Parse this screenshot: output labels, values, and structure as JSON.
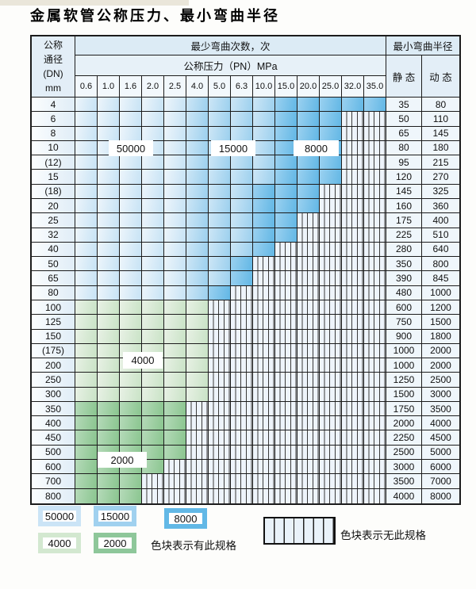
{
  "title": "金属软管公称压力、最小弯曲半径",
  "table": {
    "header": {
      "dn_lines": [
        "公称",
        "通径",
        "(DN)",
        "mm"
      ],
      "bend_cycles_label": "最少弯曲次数，次",
      "bend_radius_label": "最小弯曲半径",
      "pressure_label": "公称压力（PN）MPa",
      "pressure_cols": [
        "0.6",
        "1.0",
        "1.6",
        "2.0",
        "2.5",
        "4.0",
        "5.0",
        "6.3",
        "10.0",
        "15.0",
        "20.0",
        "25.0",
        "32.0",
        "35.0"
      ],
      "static_label": "静 态",
      "dynamic_label": "动 态"
    },
    "zone_legend_meaning": {
      "z50000": "50000",
      "z15000": "15000",
      "z8000": "8000",
      "z4000": "4000",
      "z2000": "2000",
      "striped": "无此规格"
    },
    "rows": [
      {
        "dn": "4",
        "static": "35",
        "dynamic": "80",
        "zones": [
          [
            "z50000",
            5
          ],
          [
            "z15000",
            4
          ],
          [
            "z8000",
            5
          ]
        ]
      },
      {
        "dn": "6",
        "static": "50",
        "dynamic": "110",
        "zones": [
          [
            "z50000",
            5
          ],
          [
            "z15000",
            4
          ],
          [
            "z8000",
            3
          ],
          [
            "striped",
            2
          ]
        ]
      },
      {
        "dn": "8",
        "static": "65",
        "dynamic": "145",
        "zones": [
          [
            "z50000",
            5
          ],
          [
            "z15000",
            4
          ],
          [
            "z8000",
            3
          ],
          [
            "striped",
            2
          ]
        ]
      },
      {
        "dn": "10",
        "static": "80",
        "dynamic": "180",
        "zones": [
          [
            "z50000",
            5
          ],
          [
            "z15000",
            4
          ],
          [
            "z8000",
            3
          ],
          [
            "striped",
            2
          ]
        ]
      },
      {
        "dn": "(12)",
        "static": "95",
        "dynamic": "215",
        "zones": [
          [
            "z50000",
            5
          ],
          [
            "z15000",
            4
          ],
          [
            "z8000",
            3
          ],
          [
            "striped",
            2
          ]
        ]
      },
      {
        "dn": "15",
        "static": "120",
        "dynamic": "270",
        "zones": [
          [
            "z50000",
            5
          ],
          [
            "z15000",
            4
          ],
          [
            "z8000",
            3
          ],
          [
            "striped",
            2
          ]
        ]
      },
      {
        "dn": "(18)",
        "static": "145",
        "dynamic": "325",
        "zones": [
          [
            "z50000",
            5
          ],
          [
            "z15000",
            3
          ],
          [
            "z8000",
            3
          ],
          [
            "striped",
            3
          ]
        ]
      },
      {
        "dn": "20",
        "static": "160",
        "dynamic": "360",
        "zones": [
          [
            "z50000",
            5
          ],
          [
            "z15000",
            3
          ],
          [
            "z8000",
            3
          ],
          [
            "striped",
            3
          ]
        ]
      },
      {
        "dn": "25",
        "static": "175",
        "dynamic": "400",
        "zones": [
          [
            "z50000",
            5
          ],
          [
            "z15000",
            3
          ],
          [
            "z8000",
            2
          ],
          [
            "striped",
            4
          ]
        ]
      },
      {
        "dn": "32",
        "static": "225",
        "dynamic": "510",
        "zones": [
          [
            "z50000",
            5
          ],
          [
            "z15000",
            3
          ],
          [
            "z8000",
            2
          ],
          [
            "striped",
            4
          ]
        ]
      },
      {
        "dn": "40",
        "static": "280",
        "dynamic": "640",
        "zones": [
          [
            "z50000",
            5
          ],
          [
            "z15000",
            3
          ],
          [
            "z8000",
            1
          ],
          [
            "striped",
            5
          ]
        ]
      },
      {
        "dn": "50",
        "static": "350",
        "dynamic": "800",
        "zones": [
          [
            "z50000",
            5
          ],
          [
            "z15000",
            2
          ],
          [
            "z8000",
            1
          ],
          [
            "striped",
            6
          ]
        ]
      },
      {
        "dn": "65",
        "static": "390",
        "dynamic": "845",
        "zones": [
          [
            "z50000",
            5
          ],
          [
            "z15000",
            2
          ],
          [
            "z8000",
            1
          ],
          [
            "striped",
            6
          ]
        ]
      },
      {
        "dn": "80",
        "static": "480",
        "dynamic": "1000",
        "zones": [
          [
            "z50000",
            5
          ],
          [
            "z15000",
            1
          ],
          [
            "z8000",
            1
          ],
          [
            "striped",
            7
          ]
        ]
      },
      {
        "dn": "100",
        "static": "600",
        "dynamic": "1200",
        "zones": [
          [
            "z4000",
            6
          ],
          [
            "striped",
            8
          ]
        ]
      },
      {
        "dn": "125",
        "static": "750",
        "dynamic": "1500",
        "zones": [
          [
            "z4000",
            6
          ],
          [
            "striped",
            8
          ]
        ]
      },
      {
        "dn": "150",
        "static": "900",
        "dynamic": "1800",
        "zones": [
          [
            "z4000",
            6
          ],
          [
            "striped",
            8
          ]
        ]
      },
      {
        "dn": "(175)",
        "static": "1000",
        "dynamic": "2000",
        "zones": [
          [
            "z4000",
            6
          ],
          [
            "striped",
            8
          ]
        ]
      },
      {
        "dn": "200",
        "static": "1000",
        "dynamic": "2000",
        "zones": [
          [
            "z4000",
            6
          ],
          [
            "striped",
            8
          ]
        ]
      },
      {
        "dn": "250",
        "static": "1250",
        "dynamic": "2500",
        "zones": [
          [
            "z4000",
            6
          ],
          [
            "striped",
            8
          ]
        ]
      },
      {
        "dn": "300",
        "static": "1500",
        "dynamic": "3000",
        "zones": [
          [
            "z4000",
            6
          ],
          [
            "striped",
            8
          ]
        ]
      },
      {
        "dn": "350",
        "static": "1750",
        "dynamic": "3500",
        "zones": [
          [
            "z2000",
            5
          ],
          [
            "striped",
            9
          ]
        ]
      },
      {
        "dn": "400",
        "static": "2000",
        "dynamic": "4000",
        "zones": [
          [
            "z2000",
            5
          ],
          [
            "striped",
            9
          ]
        ]
      },
      {
        "dn": "450",
        "static": "2250",
        "dynamic": "4500",
        "zones": [
          [
            "z2000",
            5
          ],
          [
            "striped",
            9
          ]
        ]
      },
      {
        "dn": "500",
        "static": "2500",
        "dynamic": "5000",
        "zones": [
          [
            "z2000",
            5
          ],
          [
            "striped",
            9
          ]
        ]
      },
      {
        "dn": "600",
        "static": "3000",
        "dynamic": "6000",
        "zones": [
          [
            "z2000",
            4
          ],
          [
            "striped",
            10
          ]
        ]
      },
      {
        "dn": "700",
        "static": "3500",
        "dynamic": "7000",
        "zones": [
          [
            "z2000",
            3
          ],
          [
            "striped",
            11
          ]
        ]
      },
      {
        "dn": "800",
        "static": "4000",
        "dynamic": "8000",
        "zones": [
          [
            "z2000",
            3
          ],
          [
            "striped",
            11
          ]
        ]
      }
    ]
  },
  "overlays": {
    "o50000": "50000",
    "o15000": "15000",
    "o8000": "8000",
    "o4000": "4000",
    "o2000": "2000"
  },
  "legend": {
    "items": [
      {
        "label": "50000"
      },
      {
        "label": "15000"
      },
      {
        "label": "8000"
      },
      {
        "label": "4000"
      },
      {
        "label": "2000"
      }
    ],
    "available_text": "色块表示有此规格",
    "unavailable_text": "色块表示无此规格"
  },
  "colors": {
    "z50000": "#cfe6f7",
    "z15000": "#a0d1ef",
    "z8000": "#62b8e6",
    "z4000": "#d3e8d0",
    "z2000": "#8ec79a",
    "striped_bg": "#eef4fb",
    "header_bg": "#e3eef7",
    "border": "#1c1c1c"
  }
}
